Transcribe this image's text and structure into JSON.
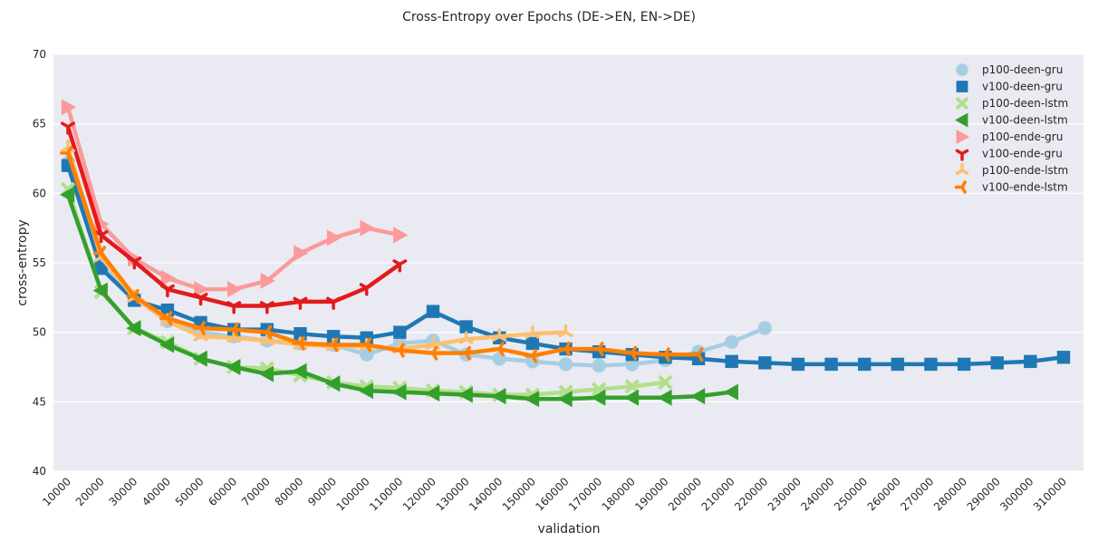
{
  "chart_data": {
    "type": "line",
    "title": "Cross-Entropy over Epochs (DE->EN, EN->DE)",
    "xlabel": "validation",
    "ylabel": "cross-entropy",
    "xlim": [
      10000,
      310000
    ],
    "ylim": [
      40,
      70
    ],
    "x_ticks": [
      10000,
      20000,
      30000,
      40000,
      50000,
      60000,
      70000,
      80000,
      90000,
      100000,
      110000,
      120000,
      130000,
      140000,
      150000,
      160000,
      170000,
      180000,
      190000,
      200000,
      210000,
      220000,
      230000,
      240000,
      250000,
      260000,
      270000,
      280000,
      290000,
      300000,
      310000
    ],
    "y_ticks": [
      40,
      45,
      50,
      55,
      60,
      65,
      70
    ],
    "grid": true,
    "legend_position": "top-right",
    "background": "#eaeaf2",
    "series": [
      {
        "name": "p100-deen-gru",
        "color": "#a6cee3",
        "marker": "circle",
        "x": [
          10000,
          20000,
          30000,
          40000,
          50000,
          60000,
          70000,
          80000,
          90000,
          100000,
          110000,
          120000,
          130000,
          140000,
          150000,
          160000,
          170000,
          180000,
          190000,
          200000,
          210000,
          220000
        ],
        "y": [
          62.2,
          55.0,
          52.5,
          50.8,
          50.0,
          49.7,
          49.4,
          49.2,
          49.1,
          48.4,
          49.2,
          49.4,
          48.4,
          48.1,
          47.9,
          47.7,
          47.6,
          47.7,
          48.0,
          48.6,
          49.3,
          50.3
        ]
      },
      {
        "name": "v100-deen-gru",
        "color": "#1f78b4",
        "marker": "square",
        "x": [
          10000,
          20000,
          30000,
          40000,
          50000,
          60000,
          70000,
          80000,
          90000,
          100000,
          110000,
          120000,
          130000,
          140000,
          150000,
          160000,
          170000,
          180000,
          190000,
          200000,
          210000,
          220000,
          230000,
          240000,
          250000,
          260000,
          270000,
          280000,
          290000,
          300000,
          310000
        ],
        "y": [
          62.0,
          54.6,
          52.3,
          51.6,
          50.7,
          50.2,
          50.2,
          49.9,
          49.7,
          49.6,
          50.0,
          51.5,
          50.4,
          49.6,
          49.2,
          48.8,
          48.6,
          48.4,
          48.2,
          48.1,
          47.9,
          47.8,
          47.7,
          47.7,
          47.7,
          47.7,
          47.7,
          47.7,
          47.8,
          47.9,
          48.2
        ]
      },
      {
        "name": "p100-deen-lstm",
        "color": "#b2df8a",
        "marker": "x",
        "x": [
          10000,
          20000,
          30000,
          40000,
          50000,
          60000,
          70000,
          80000,
          90000,
          100000,
          110000,
          120000,
          130000,
          140000,
          150000,
          160000,
          170000,
          180000,
          190000
        ],
        "y": [
          60.3,
          52.9,
          50.3,
          49.3,
          48.1,
          47.5,
          47.4,
          46.9,
          46.4,
          46.1,
          46.0,
          45.8,
          45.7,
          45.5,
          45.5,
          45.7,
          45.9,
          46.1,
          46.4
        ]
      },
      {
        "name": "v100-deen-lstm",
        "color": "#33a02c",
        "marker": "triangle-left",
        "x": [
          10000,
          20000,
          30000,
          40000,
          50000,
          60000,
          70000,
          80000,
          90000,
          100000,
          110000,
          120000,
          130000,
          140000,
          150000,
          160000,
          170000,
          180000,
          190000,
          200000,
          210000
        ],
        "y": [
          59.9,
          53.0,
          50.3,
          49.1,
          48.1,
          47.5,
          47.0,
          47.2,
          46.3,
          45.8,
          45.7,
          45.6,
          45.5,
          45.4,
          45.2,
          45.2,
          45.3,
          45.3,
          45.3,
          45.4,
          45.7
        ]
      },
      {
        "name": "p100-ende-gru",
        "color": "#fb9a99",
        "marker": "triangle-right",
        "x": [
          10000,
          20000,
          30000,
          40000,
          50000,
          60000,
          70000,
          80000,
          90000,
          100000,
          110000
        ],
        "y": [
          66.2,
          57.8,
          55.3,
          53.9,
          53.1,
          53.1,
          53.7,
          55.7,
          56.8,
          57.5,
          57.0
        ]
      },
      {
        "name": "v100-ende-gru",
        "color": "#e31a1c",
        "marker": "tri-down",
        "x": [
          10000,
          20000,
          30000,
          40000,
          50000,
          60000,
          70000,
          80000,
          90000,
          100000,
          110000
        ],
        "y": [
          64.8,
          57.0,
          55.1,
          53.1,
          52.5,
          51.9,
          51.9,
          52.2,
          52.2,
          53.2,
          54.9
        ]
      },
      {
        "name": "p100-ende-lstm",
        "color": "#fdbf6f",
        "marker": "tri-up",
        "x": [
          10000,
          20000,
          30000,
          40000,
          50000,
          60000,
          70000,
          80000,
          90000,
          100000,
          110000,
          120000,
          130000,
          140000,
          150000,
          160000
        ],
        "y": [
          63.3,
          55.4,
          52.5,
          50.8,
          49.7,
          49.6,
          49.4,
          49.1,
          49.0,
          49.0,
          48.8,
          49.1,
          49.5,
          49.7,
          49.9,
          50.0
        ]
      },
      {
        "name": "v100-ende-lstm",
        "color": "#ff7f00",
        "marker": "tri-left",
        "x": [
          10000,
          20000,
          30000,
          40000,
          50000,
          60000,
          70000,
          80000,
          90000,
          100000,
          110000,
          120000,
          130000,
          140000,
          150000,
          160000,
          170000,
          180000,
          190000,
          200000
        ],
        "y": [
          62.9,
          55.7,
          52.6,
          51.0,
          50.3,
          50.2,
          50.0,
          49.2,
          49.1,
          49.1,
          48.7,
          48.5,
          48.5,
          48.8,
          48.3,
          48.8,
          48.8,
          48.5,
          48.4,
          48.4
        ]
      }
    ]
  }
}
